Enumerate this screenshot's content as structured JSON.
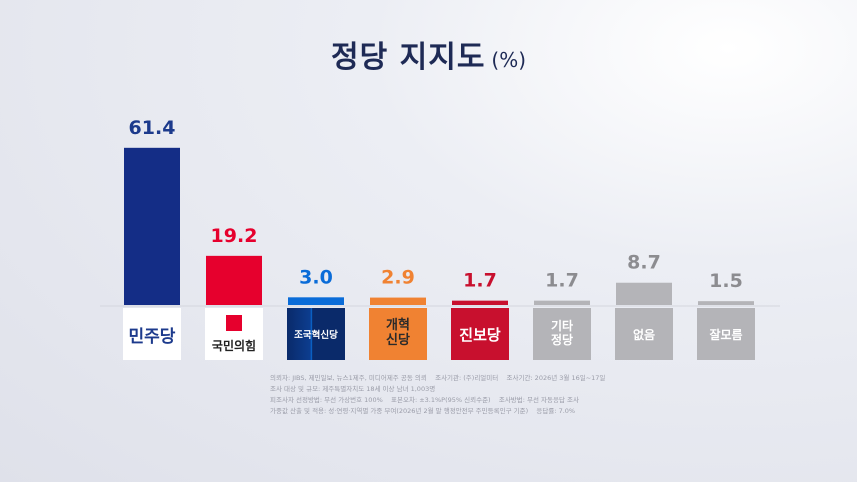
{
  "chart_data": {
    "type": "bar",
    "title": "정당 지지도",
    "unit": "(%)",
    "categories": [
      "민주당",
      "국민의힘",
      "조국혁신당",
      "개혁신당",
      "진보당",
      "기타정당",
      "없음",
      "잘모름"
    ],
    "values": [
      61.4,
      19.2,
      3.0,
      2.9,
      1.7,
      1.7,
      8.7,
      1.5
    ],
    "value_labels": [
      "61.4",
      "19.2",
      "3.0",
      "2.9",
      "1.7",
      "1.7",
      "8.7",
      "1.5"
    ],
    "colors": [
      "#142d86",
      "#e6002d",
      "#0a6cd8",
      "#f08232",
      "#c8102e",
      "#b4b4b8",
      "#b4b4b8",
      "#b4b4b8"
    ],
    "label_colors": [
      "#1c3a8c",
      "#e6002d",
      "#0a6cd8",
      "#f08232",
      "#c8102e",
      "#8c8c90",
      "#8c8c90",
      "#8c8c90"
    ],
    "notes": [
      "의뢰자: JIBS, 제민일보, 뉴스1제주, 미디어제주 공동 의뢰    조사기관: (주)리얼미터    조사기간: 2026년 3월 16일~17일",
      "조사 대상 및 규모: 제주특별자치도 18세 이상 남녀 1,003명",
      "피조사자 선정방법: 무선 가상번호 100%    표본오차: ±3.1%P(95% 신뢰수준)    조사방법: 무선 자동응답 조사",
      "가중값 산출 및 적용: 성·연령·지역별 가중 부여(2026년 2월 말 행정안전부 주민등록인구 기준)    응답률: 7.0%"
    ]
  }
}
